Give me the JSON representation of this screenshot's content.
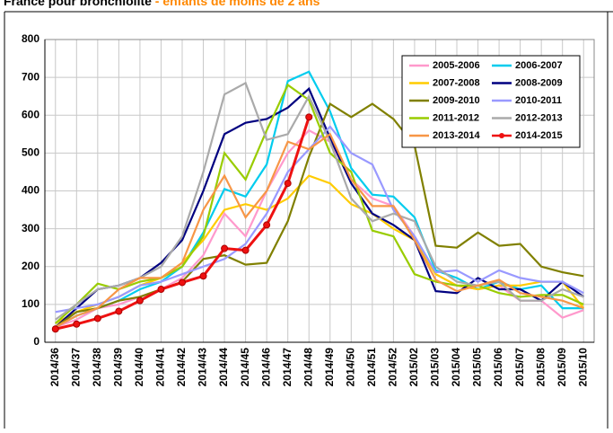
{
  "chart_data": {
    "type": "line",
    "title": "France pour bronchiolite",
    "subtitle": "- enfants de moins de 2 ans",
    "categories": [
      "2014/36",
      "2014/37",
      "2014/38",
      "2014/39",
      "2014/40",
      "2014/41",
      "2014/42",
      "2014/43",
      "2014/44",
      "2014/45",
      "2014/46",
      "2014/47",
      "2014/48",
      "2014/49",
      "2014/50",
      "2014/51",
      "2014/52",
      "2015/02",
      "2015/03",
      "2015/04",
      "2015/05",
      "2015/06",
      "2015/07",
      "2015/08",
      "2015/09",
      "2015/10"
    ],
    "ylim": [
      0,
      800
    ],
    "yticks": [
      0,
      100,
      200,
      300,
      400,
      500,
      600,
      700,
      800
    ],
    "grid": true,
    "legend": "upper-right",
    "series": [
      {
        "name": "2005-2006",
        "color": "#ff99cc",
        "values": [
          40,
          60,
          90,
          100,
          120,
          140,
          170,
          230,
          340,
          280,
          400,
          500,
          560,
          530,
          430,
          380,
          360,
          280,
          180,
          150,
          140,
          150,
          110,
          110,
          65,
          85
        ]
      },
      {
        "name": "2006-2007",
        "color": "#00ccee",
        "values": [
          40,
          70,
          90,
          110,
          140,
          160,
          200,
          290,
          405,
          385,
          470,
          690,
          715,
          610,
          460,
          390,
          385,
          330,
          190,
          170,
          140,
          160,
          140,
          150,
          90,
          90
        ]
      },
      {
        "name": "2007-2008",
        "color": "#ffcc00",
        "values": [
          50,
          80,
          100,
          120,
          150,
          170,
          210,
          270,
          350,
          365,
          350,
          380,
          440,
          420,
          365,
          340,
          300,
          270,
          180,
          150,
          140,
          150,
          150,
          160,
          160,
          90
        ]
      },
      {
        "name": "2008-2009",
        "color": "#000080",
        "values": [
          40,
          90,
          140,
          150,
          170,
          210,
          270,
          400,
          550,
          580,
          590,
          620,
          670,
          540,
          420,
          340,
          310,
          270,
          135,
          130,
          170,
          140,
          140,
          110,
          160,
          120
        ]
      },
      {
        "name": "2009-2010",
        "color": "#808000",
        "values": [
          40,
          80,
          90,
          110,
          120,
          140,
          160,
          220,
          230,
          205,
          210,
          320,
          490,
          630,
          595,
          630,
          590,
          520,
          255,
          250,
          290,
          255,
          260,
          200,
          185,
          175
        ]
      },
      {
        "name": "2010-2011",
        "color": "#9999ff",
        "values": [
          80,
          90,
          100,
          120,
          150,
          160,
          180,
          200,
          220,
          260,
          340,
          450,
          510,
          570,
          500,
          470,
          350,
          280,
          185,
          190,
          160,
          190,
          170,
          160,
          160,
          130
        ]
      },
      {
        "name": "2011-2012",
        "color": "#99cc00",
        "values": [
          50,
          100,
          155,
          140,
          160,
          170,
          200,
          280,
          500,
          430,
          560,
          680,
          640,
          500,
          450,
          295,
          280,
          180,
          160,
          150,
          150,
          130,
          120,
          125,
          125,
          100
        ]
      },
      {
        "name": "2012-2013",
        "color": "#aaaaaa",
        "values": [
          60,
          100,
          140,
          150,
          170,
          200,
          280,
          450,
          655,
          685,
          535,
          550,
          650,
          530,
          380,
          320,
          340,
          320,
          200,
          160,
          150,
          160,
          110,
          110,
          140,
          120
        ]
      },
      {
        "name": "2013-2014",
        "color": "#f79646",
        "values": [
          40,
          70,
          90,
          140,
          170,
          170,
          210,
          350,
          440,
          330,
          400,
          530,
          510,
          550,
          430,
          360,
          360,
          270,
          165,
          135,
          150,
          165,
          130,
          120,
          110,
          90
        ]
      },
      {
        "name": "2014-2015",
        "color": "#ee1111",
        "marker": true,
        "values": [
          35,
          48,
          63,
          82,
          110,
          140,
          158,
          175,
          248,
          243,
          310,
          420,
          595,
          null,
          null,
          null,
          null,
          null,
          null,
          null,
          null,
          null,
          null,
          null,
          null,
          null
        ]
      }
    ]
  }
}
